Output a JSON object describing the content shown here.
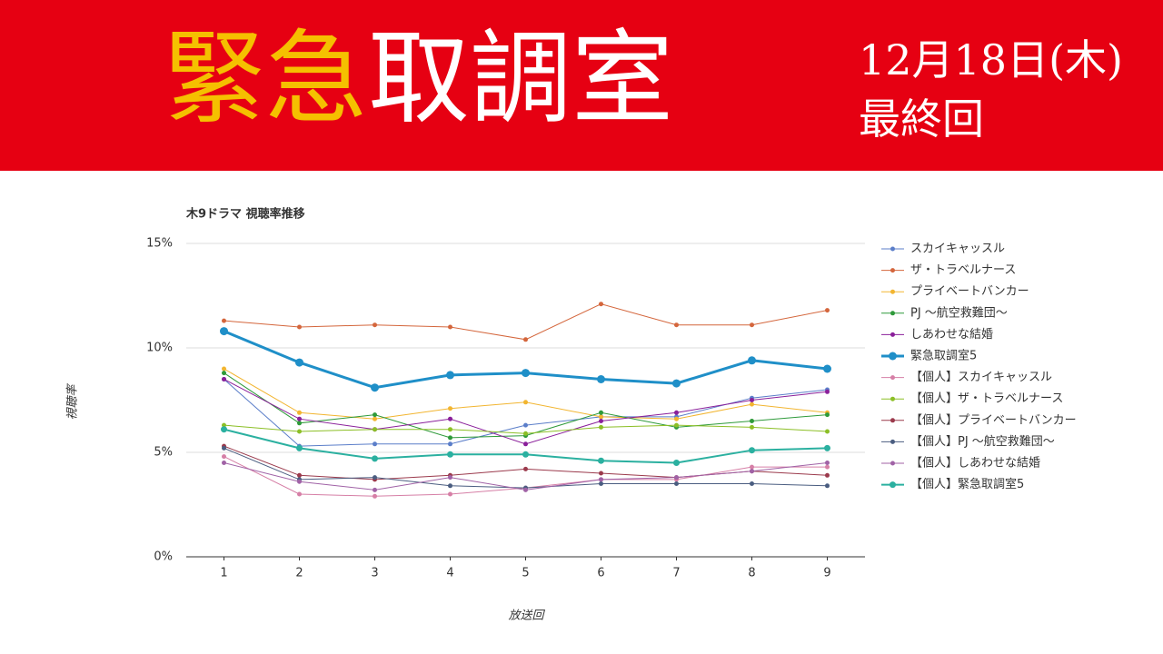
{
  "header": {
    "title_highlight": "緊急",
    "title_rest": "取調室",
    "date": "12月18日(木)",
    "note": "最終回"
  },
  "chart_data": {
    "type": "line",
    "title": "木9ドラマ 視聴率推移",
    "y_label": "視聴率",
    "x_label": "放送回",
    "x": [
      1,
      2,
      3,
      4,
      5,
      6,
      7,
      8,
      9
    ],
    "xlim": [
      0.5,
      9.5
    ],
    "xticks": [
      1,
      2,
      3,
      4,
      5,
      6,
      7,
      8,
      9
    ],
    "ylim": [
      0,
      15
    ],
    "yticks": [
      {
        "value": 0,
        "label": "0%"
      },
      {
        "value": 5,
        "label": "5%"
      },
      {
        "value": 10,
        "label": "10%"
      },
      {
        "value": 15,
        "label": "15%"
      }
    ],
    "grid": true,
    "legend": "right",
    "series": [
      {
        "name": "スカイキャッスル",
        "color": "#5b7ec9",
        "line_width": 1,
        "values": [
          8.5,
          5.3,
          5.4,
          5.4,
          6.3,
          6.7,
          6.7,
          7.6,
          8.0
        ]
      },
      {
        "name": "ザ・トラベルナース",
        "color": "#d4663c",
        "line_width": 1,
        "values": [
          11.3,
          11.0,
          11.1,
          11.0,
          10.4,
          12.1,
          11.1,
          11.1,
          11.8
        ]
      },
      {
        "name": "プライベートバンカー",
        "color": "#f2b530",
        "line_width": 1,
        "values": [
          9.0,
          6.9,
          6.6,
          7.1,
          7.4,
          6.7,
          6.6,
          7.3,
          6.9
        ]
      },
      {
        "name": "PJ ～航空救難団～",
        "color": "#2e9a3a",
        "line_width": 1,
        "values": [
          8.8,
          6.4,
          6.8,
          5.7,
          5.8,
          6.9,
          6.2,
          6.5,
          6.8
        ]
      },
      {
        "name": "しあわせな結婚",
        "color": "#8a1f9a",
        "line_width": 1,
        "values": [
          8.5,
          6.6,
          6.1,
          6.6,
          5.4,
          6.5,
          6.9,
          7.5,
          7.9
        ]
      },
      {
        "name": "緊急取調室5",
        "color": "#1f8fc8",
        "line_width": 3,
        "values": [
          10.8,
          9.3,
          8.1,
          8.7,
          8.8,
          8.5,
          8.3,
          9.4,
          9.0
        ]
      },
      {
        "name": "【個人】スカイキャッスル",
        "color": "#d67fa6",
        "line_width": 1,
        "values": [
          4.8,
          3.0,
          2.9,
          3.0,
          3.3,
          3.7,
          3.7,
          4.3,
          4.3
        ]
      },
      {
        "name": "【個人】ザ・トラベルナース",
        "color": "#8cbf26",
        "line_width": 1,
        "values": [
          6.3,
          6.0,
          6.1,
          6.1,
          5.9,
          6.2,
          6.3,
          6.2,
          6.0
        ]
      },
      {
        "name": "【個人】プライベートバンカー",
        "color": "#9b3a4c",
        "line_width": 1,
        "values": [
          5.3,
          3.9,
          3.7,
          3.9,
          4.2,
          4.0,
          3.8,
          4.1,
          3.9
        ]
      },
      {
        "name": "【個人】PJ ～航空救難団～",
        "color": "#4a5d80",
        "line_width": 1,
        "values": [
          5.2,
          3.7,
          3.8,
          3.4,
          3.3,
          3.5,
          3.5,
          3.5,
          3.4
        ]
      },
      {
        "name": "【個人】しあわせな結婚",
        "color": "#a062a6",
        "line_width": 1,
        "values": [
          4.5,
          3.6,
          3.2,
          3.8,
          3.2,
          3.7,
          3.8,
          4.1,
          4.5
        ]
      },
      {
        "name": "【個人】緊急取調室5",
        "color": "#2bb0a0",
        "line_width": 2,
        "values": [
          6.1,
          5.2,
          4.7,
          4.9,
          4.9,
          4.6,
          4.5,
          5.1,
          5.2
        ]
      }
    ]
  }
}
